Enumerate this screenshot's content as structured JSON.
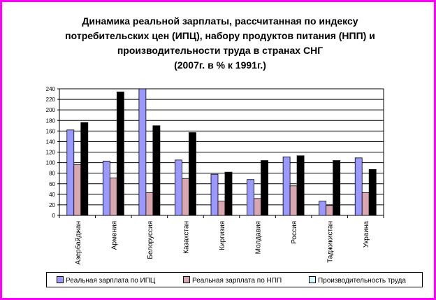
{
  "chart_data": {
    "type": "bar",
    "title_lines": [
      "Динамика реальной зарплаты, рассчитанная по индексу",
      "потребительских цен (ИПЦ), набору продуктов питания (НПП) и",
      "производительности труда в странах СНГ",
      "(2007г. в % к 1991г.)"
    ],
    "categories": [
      "Азербайджан",
      "Армения",
      "Белоруссия",
      "Казахстан",
      "Киргизия",
      "Молдавия",
      "Россия",
      "Таджикистан",
      "Украина"
    ],
    "series": [
      {
        "name": "Реальная зарплата по ИПЦ",
        "color": "#9999ff",
        "values": [
          162,
          103,
          242,
          105,
          78,
          68,
          111,
          27,
          109
        ]
      },
      {
        "name": "Реальная зарплата по НПП",
        "color": "#d9a7b0",
        "values": [
          96,
          71,
          43,
          70,
          27,
          32,
          56,
          19,
          43
        ]
      },
      {
        "name": "Производительность труда",
        "color": "#000000",
        "legend_color": "#ccffff",
        "values": [
          176,
          234,
          170,
          157,
          82,
          104,
          113,
          104,
          87
        ]
      }
    ],
    "y_ticks": [
      0,
      20,
      40,
      60,
      80,
      100,
      120,
      140,
      160,
      180,
      200,
      220,
      240
    ],
    "ylim": [
      0,
      240
    ],
    "grid": true,
    "legend_position": "bottom"
  }
}
